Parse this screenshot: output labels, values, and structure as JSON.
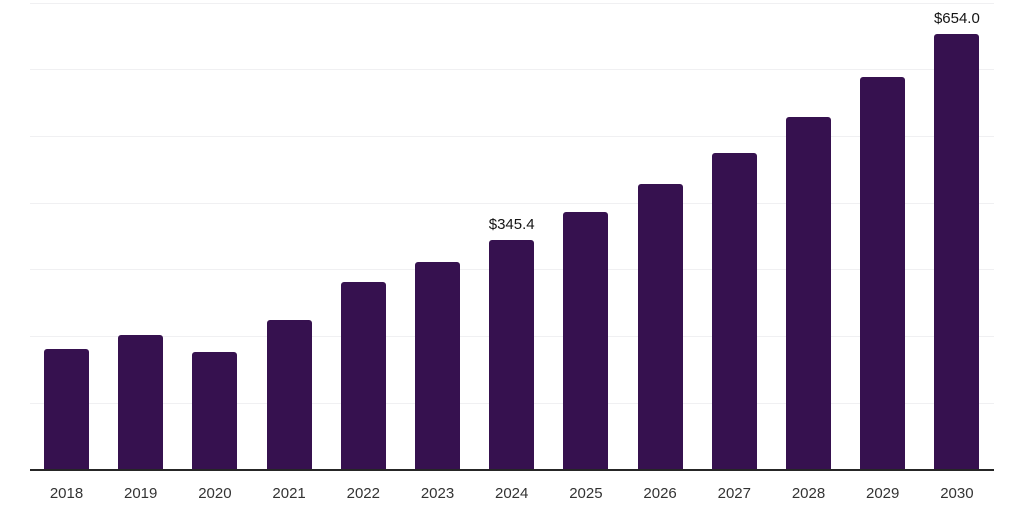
{
  "chart_data": {
    "type": "bar",
    "title": "",
    "xlabel": "",
    "ylabel": "",
    "categories": [
      "2018",
      "2019",
      "2020",
      "2021",
      "2022",
      "2023",
      "2024",
      "2025",
      "2026",
      "2027",
      "2028",
      "2029",
      "2030"
    ],
    "values": [
      181,
      202,
      177,
      225,
      282,
      312,
      345.4,
      387,
      429,
      475,
      529,
      589,
      654.0
    ],
    "annotations": [
      {
        "category_index": 6,
        "text": "$345.4"
      },
      {
        "category_index": 12,
        "text": "$654.0"
      }
    ],
    "ylim": [
      0,
      700
    ],
    "gridline_step": 100,
    "grid": "on",
    "legend": "none",
    "colors": {
      "bar": "#36114F",
      "axis_line": "#262626",
      "gridline": "#F0F0F2",
      "tick_label": "#333333",
      "data_label": "#141414",
      "background": "#FFFFFF"
    }
  }
}
